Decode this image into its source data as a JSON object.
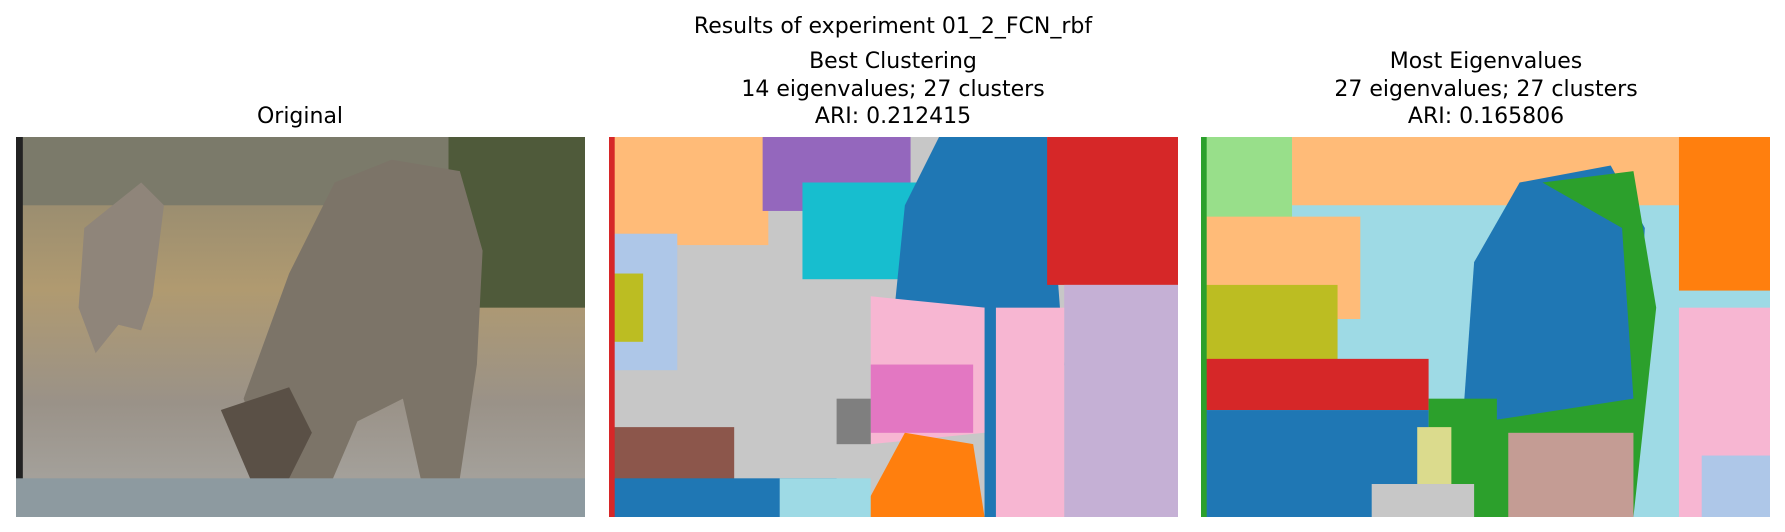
{
  "title": "Results of experiment 01_2_FCN_rbf",
  "panels": [
    {
      "title": [
        "Original"
      ]
    },
    {
      "title": [
        "Best Clustering",
        "14 eigenvalues; 27 clusters",
        "ARI: 0.212415"
      ]
    },
    {
      "title": [
        "Most Eigenvalues",
        "27 eigenvalues; 27 clusters",
        "ARI: 0.165806"
      ]
    }
  ]
}
